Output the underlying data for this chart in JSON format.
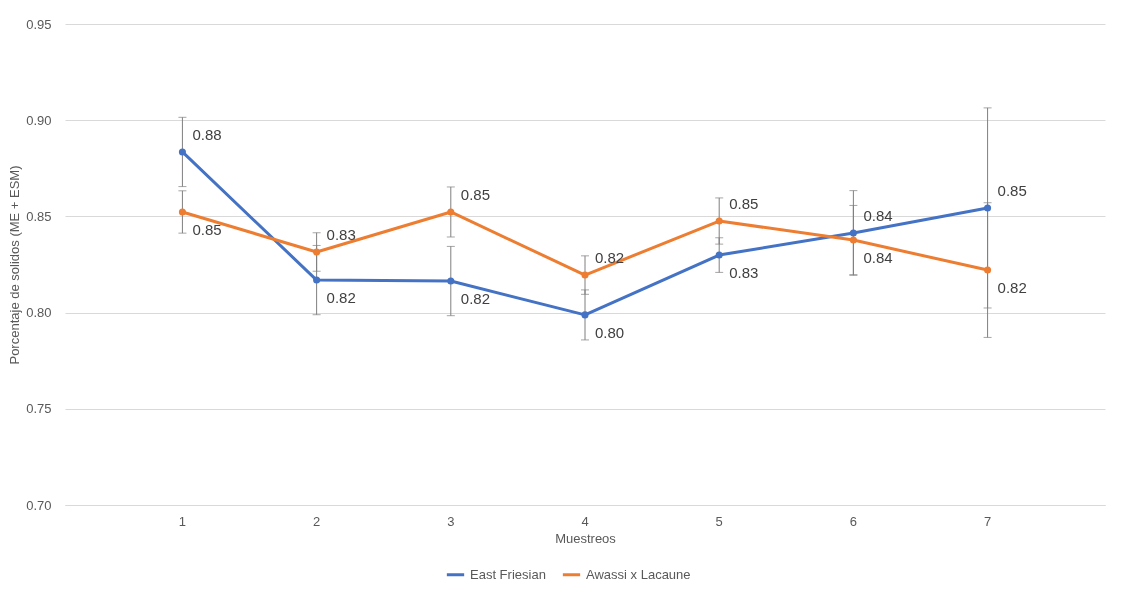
{
  "chart_data": {
    "type": "line",
    "xlabel": "Muestreos",
    "ylabel": "Porcentaje de solidos (ME + ESM)",
    "categories": [
      "1",
      "2",
      "3",
      "4",
      "5",
      "6",
      "7"
    ],
    "series": [
      {
        "name": "East Friesian",
        "color": "#4472c4",
        "values": [
          0.8835,
          0.8169,
          0.8164,
          0.7988,
          0.8299,
          0.8414,
          0.8544
        ],
        "errors": [
          0.018,
          0.018,
          0.018,
          0.013,
          0.009,
          0.022,
          0.052
        ],
        "value_labels": [
          "0.88",
          "0.82",
          "0.82",
          "0.80",
          "0.83",
          "0.84",
          "0.85"
        ]
      },
      {
        "name": "Awassi x Lacaune",
        "color": "#ed7d31",
        "values": [
          0.8523,
          0.8315,
          0.8523,
          0.8195,
          0.8476,
          0.8377,
          0.8221
        ],
        "errors": [
          0.011,
          0.01,
          0.013,
          0.01,
          0.012,
          0.018,
          0.035
        ],
        "value_labels": [
          "0.85",
          "0.83",
          "0.85",
          "0.82",
          "0.85",
          "0.84",
          "0.82"
        ]
      }
    ],
    "ylim": [
      0.7,
      0.95
    ],
    "yticks": [
      {
        "value": 0.7,
        "label": "0.70"
      },
      {
        "value": 0.75,
        "label": "0.75"
      },
      {
        "value": 0.8,
        "label": "0.80"
      },
      {
        "value": 0.85,
        "label": "0.85"
      },
      {
        "value": 0.9,
        "label": "0.90"
      },
      {
        "value": 0.95,
        "label": "0.95"
      }
    ],
    "grid": "y",
    "legend": "bottom",
    "marker": "circle",
    "line_style": "solid"
  }
}
